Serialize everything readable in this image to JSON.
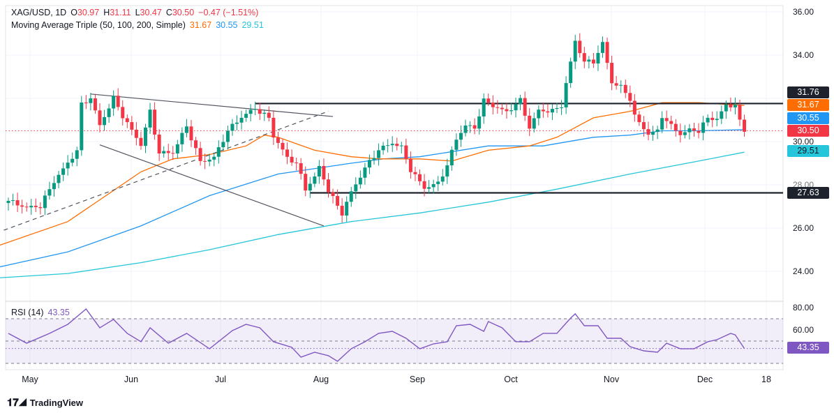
{
  "header": {
    "symbol": "XAG/USD, 1D",
    "o_label": "O",
    "o": "30.97",
    "h_label": "H",
    "h": "31.11",
    "l_label": "L",
    "l": "30.47",
    "c_label": "C",
    "c": "30.50",
    "change": "−0.47 (−1.51%)"
  },
  "ma_legend": {
    "label": "Moving Average Triple (50, 100, 200, Simple)",
    "ma50": "31.67",
    "ma100": "30.55",
    "ma200": "29.51"
  },
  "rsi_legend": {
    "label": "RSI (14)",
    "value": "43.35"
  },
  "price_axis": [
    "36.00",
    "34.00",
    "30.00",
    "28.00",
    "26.00",
    "24.00"
  ],
  "price_tags": {
    "resistance": "31.76",
    "ma50": "31.67",
    "ma100": "30.55",
    "last": "30.50",
    "ma200": "29.51",
    "support": "27.63"
  },
  "rsi_axis": [
    "80.00",
    "60.00"
  ],
  "rsi_tag": "43.35",
  "time_axis": [
    "May",
    "Jun",
    "Jul",
    "Aug",
    "Sep",
    "Oct",
    "Nov",
    "Dec",
    "18"
  ],
  "brand": "TradingView",
  "colors": {
    "up": "#089981",
    "down": "#f23645",
    "ma50": "#ff6d00",
    "ma100": "#2196f3",
    "ma200": "#26c6da",
    "rsi": "#7e57c2"
  },
  "chart_data": {
    "type": "candlestick",
    "title": "XAG/USD, 1D",
    "bars": 162,
    "ylim": [
      23.5,
      36.3
    ],
    "close_waypoints": [
      [
        0,
        27.26
      ],
      [
        4,
        26.9
      ],
      [
        7,
        27.0
      ],
      [
        10,
        28.2
      ],
      [
        15,
        29.6
      ],
      [
        16,
        31.7
      ],
      [
        18,
        32.0
      ],
      [
        20,
        30.7
      ],
      [
        23,
        32.0
      ],
      [
        25,
        31.2
      ],
      [
        29,
        29.9
      ],
      [
        31,
        31.4
      ],
      [
        33,
        29.45
      ],
      [
        36,
        29.45
      ],
      [
        39,
        30.7
      ],
      [
        42,
        29.1
      ],
      [
        45,
        29.3
      ],
      [
        48,
        30.5
      ],
      [
        51,
        31.1
      ],
      [
        54,
        31.5
      ],
      [
        57,
        31.1
      ],
      [
        58,
        30.3
      ],
      [
        61,
        29.3
      ],
      [
        63,
        29.0
      ],
      [
        65,
        27.8
      ],
      [
        67,
        28.3
      ],
      [
        68,
        28.8
      ],
      [
        70,
        27.7
      ],
      [
        73,
        26.7
      ],
      [
        75,
        27.7
      ],
      [
        78,
        28.8
      ],
      [
        81,
        29.6
      ],
      [
        84,
        29.9
      ],
      [
        86,
        29.7
      ],
      [
        88,
        28.7
      ],
      [
        91,
        27.9
      ],
      [
        94,
        28.1
      ],
      [
        96,
        28.9
      ],
      [
        98,
        30.1
      ],
      [
        100,
        30.7
      ],
      [
        102,
        30.6
      ],
      [
        104,
        31.9
      ],
      [
        107,
        31.6
      ],
      [
        109,
        31.4
      ],
      [
        112,
        31.9
      ],
      [
        114,
        30.6
      ],
      [
        116,
        31.4
      ],
      [
        119,
        31.4
      ],
      [
        121,
        31.7
      ],
      [
        123,
        33.7
      ],
      [
        124,
        34.7
      ],
      [
        126,
        33.7
      ],
      [
        128,
        33.7
      ],
      [
        130,
        34.5
      ],
      [
        132,
        32.7
      ],
      [
        134,
        32.5
      ],
      [
        136,
        32.0
      ],
      [
        137,
        31.2
      ],
      [
        138,
        30.9
      ],
      [
        140,
        30.4
      ],
      [
        142,
        30.5
      ],
      [
        143,
        31.2
      ],
      [
        145,
        30.7
      ],
      [
        147,
        30.3
      ],
      [
        149,
        30.5
      ],
      [
        151,
        30.5
      ],
      [
        153,
        31.1
      ],
      [
        155,
        31.1
      ],
      [
        157,
        31.7
      ],
      [
        159,
        31.7
      ],
      [
        160,
        30.9
      ],
      [
        161,
        30.5
      ]
    ],
    "ma50": [
      [
        -2,
        25.2
      ],
      [
        13,
        26.3
      ],
      [
        29,
        28.6
      ],
      [
        36,
        29.2
      ],
      [
        44,
        29.4
      ],
      [
        52,
        29.8
      ],
      [
        56,
        30.3
      ],
      [
        59,
        30.2
      ],
      [
        67,
        29.6
      ],
      [
        75,
        29.3
      ],
      [
        81,
        29.2
      ],
      [
        90,
        29.2
      ],
      [
        97,
        29.1
      ],
      [
        105,
        29.6
      ],
      [
        114,
        29.8
      ],
      [
        120,
        30.2
      ],
      [
        128,
        31.1
      ],
      [
        136,
        31.4
      ],
      [
        143,
        31.8
      ],
      [
        151,
        31.8
      ],
      [
        161,
        31.67
      ]
    ],
    "ma100": [
      [
        -2,
        24.2
      ],
      [
        13,
        24.9
      ],
      [
        29,
        26.1
      ],
      [
        44,
        27.5
      ],
      [
        59,
        28.5
      ],
      [
        75,
        29.0
      ],
      [
        82,
        29.2
      ],
      [
        90,
        29.3
      ],
      [
        105,
        29.8
      ],
      [
        117,
        29.8
      ],
      [
        128,
        30.2
      ],
      [
        136,
        30.3
      ],
      [
        143,
        30.5
      ],
      [
        151,
        30.5
      ],
      [
        161,
        30.55
      ]
    ],
    "ma200": [
      [
        -2,
        23.7
      ],
      [
        13,
        23.9
      ],
      [
        29,
        24.4
      ],
      [
        44,
        25.0
      ],
      [
        59,
        25.7
      ],
      [
        75,
        26.3
      ],
      [
        90,
        26.7
      ],
      [
        105,
        27.2
      ],
      [
        120,
        27.8
      ],
      [
        136,
        28.5
      ],
      [
        151,
        29.1
      ],
      [
        161,
        29.51
      ]
    ],
    "trendlines": [
      {
        "from": [
          18,
          32.2
        ],
        "to": [
          71,
          31.16
        ],
        "style": "solid"
      },
      {
        "from": [
          20,
          29.85
        ],
        "to": [
          69,
          26.1
        ],
        "style": "solid"
      },
      {
        "from": [
          -1,
          25.9
        ],
        "to": [
          70,
          31.4
        ],
        "style": "dashed"
      }
    ],
    "levels": [
      {
        "value": 31.76,
        "from_bar": 54
      },
      {
        "value": 27.63,
        "from_bar": 66
      }
    ],
    "rsi": {
      "name": "RSI (14)",
      "ylim": [
        14,
        86
      ],
      "bands": [
        30,
        50,
        70
      ],
      "points": [
        [
          0,
          56.9
        ],
        [
          4,
          48.1
        ],
        [
          9,
          56.9
        ],
        [
          13,
          65
        ],
        [
          17,
          78.75
        ],
        [
          20,
          61.9
        ],
        [
          23,
          69.4
        ],
        [
          26,
          56.9
        ],
        [
          29,
          49.4
        ],
        [
          31,
          61.9
        ],
        [
          35,
          48.1
        ],
        [
          39,
          56.9
        ],
        [
          44,
          43.1
        ],
        [
          49,
          59.4
        ],
        [
          52,
          65
        ],
        [
          55,
          61.9
        ],
        [
          58,
          49.4
        ],
        [
          62,
          44.4
        ],
        [
          64,
          35.6
        ],
        [
          67,
          40
        ],
        [
          70,
          36.9
        ],
        [
          72,
          31.9
        ],
        [
          75,
          43.1
        ],
        [
          78,
          49.4
        ],
        [
          81,
          56.9
        ],
        [
          84,
          58.75
        ],
        [
          87,
          52.5
        ],
        [
          90,
          43.1
        ],
        [
          93,
          47.5
        ],
        [
          96,
          49.4
        ],
        [
          98,
          63.75
        ],
        [
          101,
          65
        ],
        [
          104,
          58.75
        ],
        [
          105,
          67.5
        ],
        [
          108,
          61.9
        ],
        [
          111,
          49.4
        ],
        [
          114,
          49.4
        ],
        [
          117,
          56.9
        ],
        [
          120,
          56.9
        ],
        [
          123,
          70.6
        ],
        [
          124,
          74.4
        ],
        [
          126,
          63.75
        ],
        [
          129,
          63.75
        ],
        [
          131,
          52.5
        ],
        [
          134,
          52.5
        ],
        [
          136,
          45
        ],
        [
          139,
          41.25
        ],
        [
          142,
          40
        ],
        [
          144,
          48.1
        ],
        [
          147,
          43.1
        ],
        [
          150,
          43.1
        ],
        [
          153,
          49.4
        ],
        [
          155,
          51.25
        ],
        [
          158,
          56.9
        ],
        [
          159,
          55.6
        ],
        [
          161,
          43.35
        ]
      ]
    }
  }
}
